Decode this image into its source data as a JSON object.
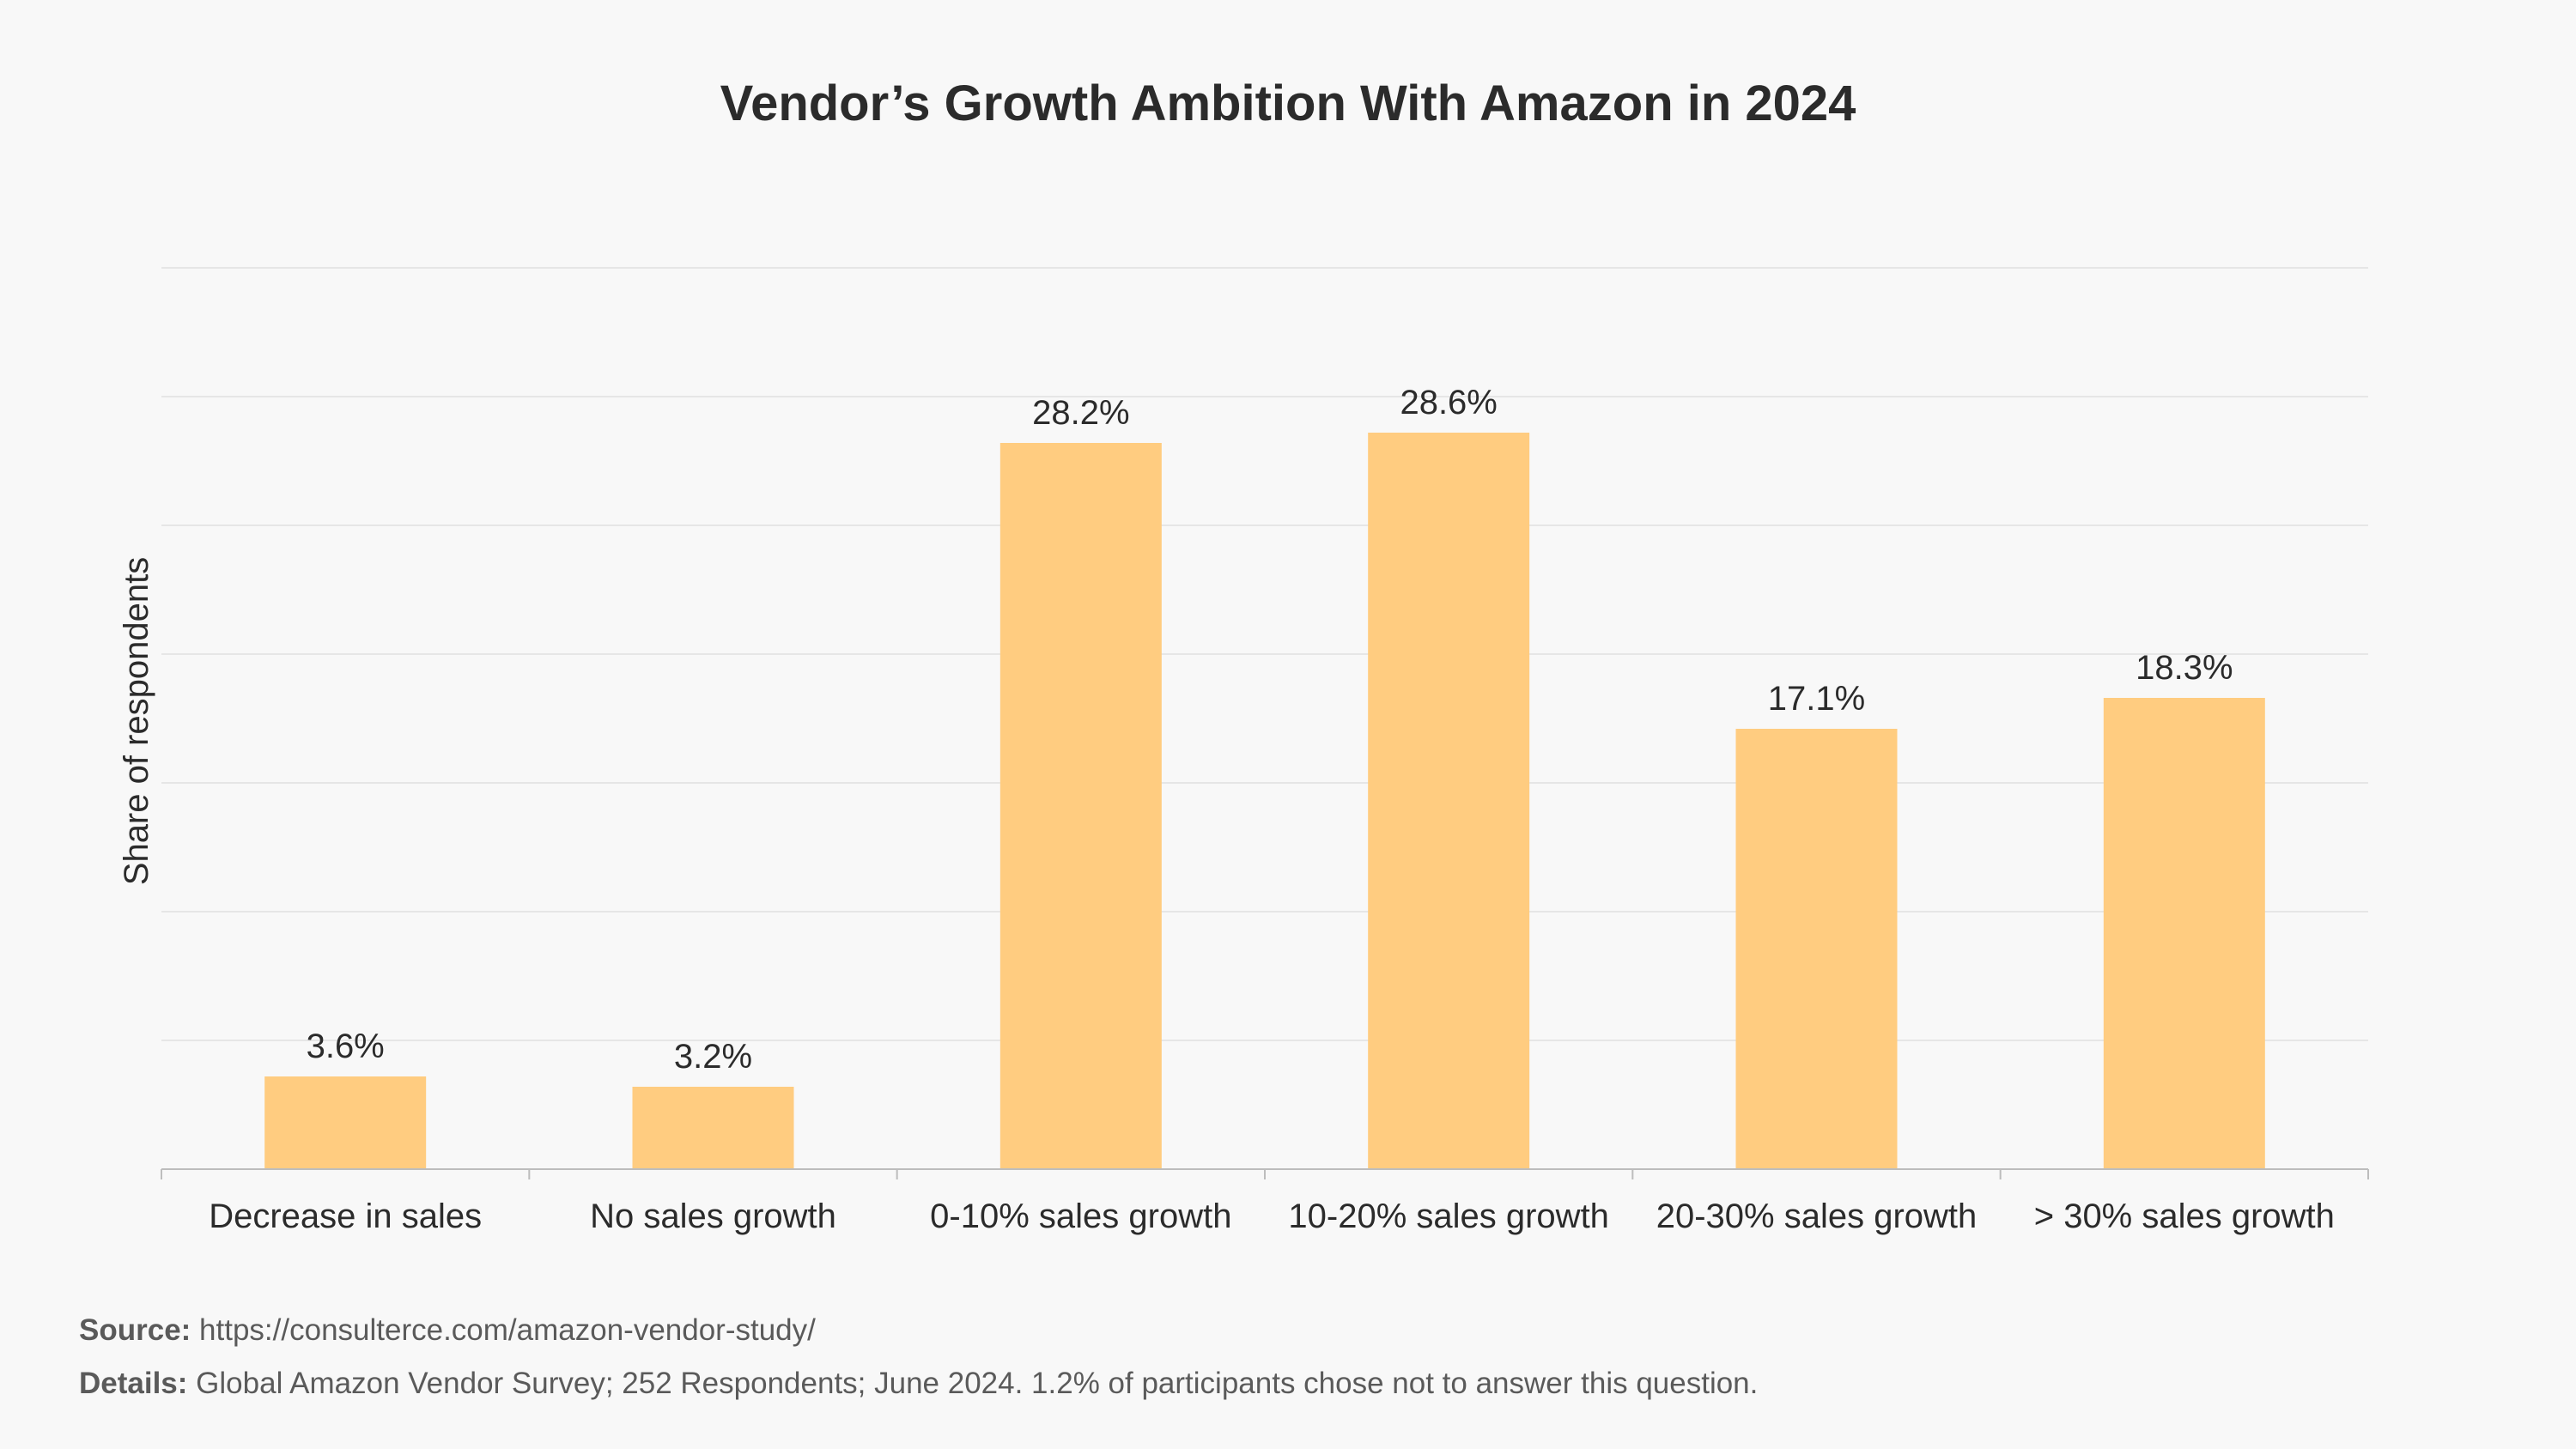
{
  "chart_data": {
    "type": "bar",
    "title": "Vendor’s Growth Ambition With Amazon in 2024",
    "ylabel": "Share of respondents",
    "xlabel": "",
    "categories": [
      "Decrease in sales",
      "No sales growth",
      "0-10% sales growth",
      "10-20% sales growth",
      "20-30% sales growth",
      "> 30% sales growth"
    ],
    "values": [
      3.6,
      3.2,
      28.2,
      28.6,
      17.1,
      18.3
    ],
    "value_labels": [
      "3.6%",
      "3.2%",
      "28.2%",
      "28.6%",
      "17.1%",
      "18.3%"
    ],
    "ylim": [
      0,
      35
    ],
    "grid": true,
    "bar_color": "#ffcc80"
  },
  "footer": {
    "source_label": "Source:",
    "source_text": "https://consulterce.com/amazon-vendor-study/",
    "details_label": "Details:",
    "details_text": "Global Amazon Vendor Survey; 252 Respondents; June 2024. 1.2% of participants chose not to answer this question."
  }
}
